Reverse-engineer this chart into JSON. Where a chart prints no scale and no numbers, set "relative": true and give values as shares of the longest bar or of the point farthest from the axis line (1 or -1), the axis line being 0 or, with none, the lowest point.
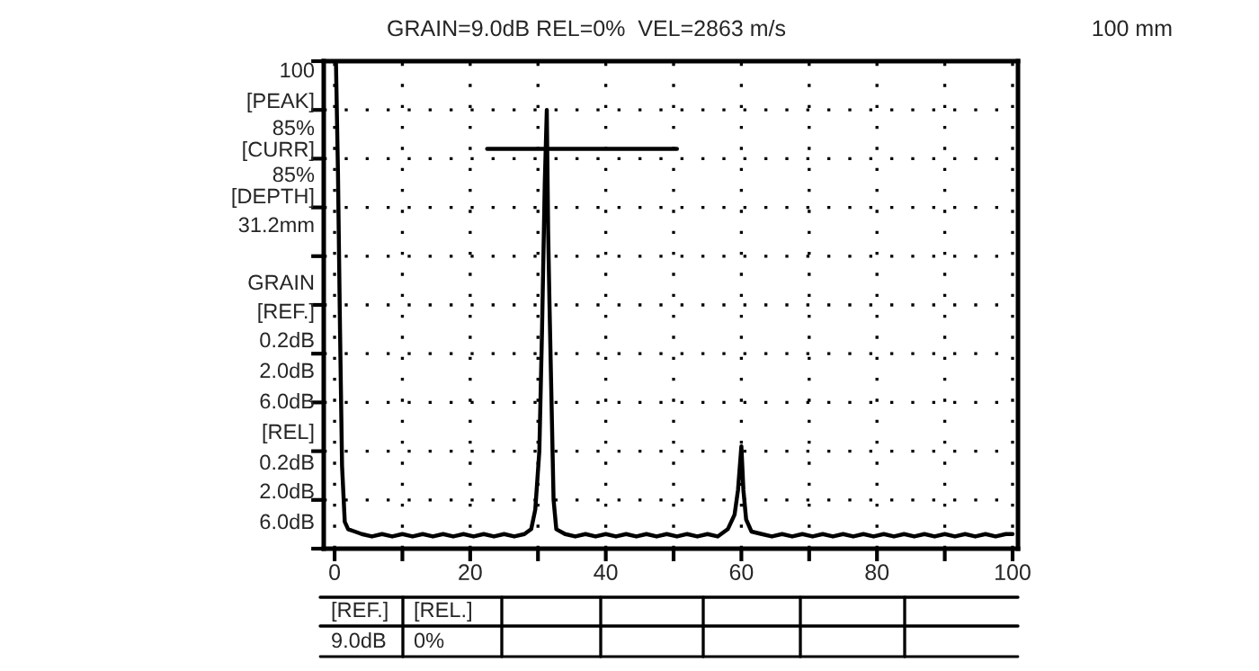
{
  "chart_data": {
    "type": "line",
    "title": "GRAIN=9.0dB REL=0%  VEL=2863 m/s",
    "relative": true,
    "grid": true,
    "legend": false,
    "xlim": [
      -1.6,
      100.8
    ],
    "xticks": [
      0,
      {
        "value": 10,
        "label": null
      },
      20,
      {
        "value": 30,
        "label": null
      },
      40,
      {
        "value": 50,
        "label": null
      },
      60,
      {
        "value": 70,
        "label": null
      },
      80,
      {
        "value": 90,
        "label": null
      },
      100
    ],
    "series": [
      {
        "color": "#000000",
        "x": [
          0,
          0.2,
          0.5,
          0.8,
          1.1,
          1.5,
          2.0,
          3,
          4,
          5.5,
          7,
          8.5,
          10,
          11.5,
          13,
          14.5,
          16,
          17.5,
          19,
          20.5,
          22,
          23.5,
          25,
          26.5,
          28,
          29.0,
          29.6,
          30.2,
          30.6,
          31.0,
          31.3,
          31.5,
          31.7,
          32.0,
          32.3,
          32.7,
          34,
          35.5,
          37,
          38.5,
          40,
          41.5,
          43,
          44.5,
          46,
          47.5,
          49,
          50.5,
          52,
          53.5,
          55,
          56.5,
          58,
          59,
          59.5,
          60,
          60.3,
          60.7,
          61.5,
          63,
          64.5,
          66,
          67.5,
          69,
          70.5,
          72,
          73.5,
          75,
          76.5,
          78,
          79.5,
          81,
          82.5,
          84,
          85.5,
          87,
          88.5,
          90,
          91.5,
          93,
          94.5,
          96,
          97.5,
          99,
          100
        ],
        "values": [
          1.0,
          1.0,
          0.77,
          0.45,
          0.17,
          0.055,
          0.04,
          0.035,
          0.03,
          0.025,
          0.03,
          0.025,
          0.03,
          0.025,
          0.03,
          0.025,
          0.03,
          0.025,
          0.03,
          0.025,
          0.03,
          0.025,
          0.03,
          0.025,
          0.03,
          0.04,
          0.08,
          0.2,
          0.45,
          0.75,
          0.9,
          0.65,
          0.5,
          0.3,
          0.1,
          0.04,
          0.03,
          0.025,
          0.03,
          0.025,
          0.03,
          0.025,
          0.03,
          0.025,
          0.03,
          0.025,
          0.03,
          0.025,
          0.03,
          0.025,
          0.03,
          0.025,
          0.04,
          0.07,
          0.12,
          0.21,
          0.12,
          0.06,
          0.035,
          0.03,
          0.025,
          0.03,
          0.025,
          0.03,
          0.025,
          0.03,
          0.025,
          0.03,
          0.025,
          0.03,
          0.025,
          0.03,
          0.025,
          0.03,
          0.025,
          0.03,
          0.025,
          0.03,
          0.025,
          0.03,
          0.025,
          0.03,
          0.025,
          0.03,
          0.03
        ]
      },
      {
        "color": "#000000",
        "x": [
          22.5,
          50.5
        ],
        "values": [
          0.82,
          0.82
        ]
      }
    ],
    "annotations": [
      "100",
      "[PEAK]",
      "85%",
      "[CURR]",
      "85%",
      "[DEPTH]",
      "31.2mm",
      "GRAIN",
      "[REF.]",
      "0.2dB",
      "2.0dB",
      "6.0dB",
      "[REL]",
      "0.2dB",
      "2.0dB",
      "6.0dB",
      "100 mm",
      "[REF.]",
      "[REL.]",
      "9.0dB",
      "0%"
    ]
  }
}
